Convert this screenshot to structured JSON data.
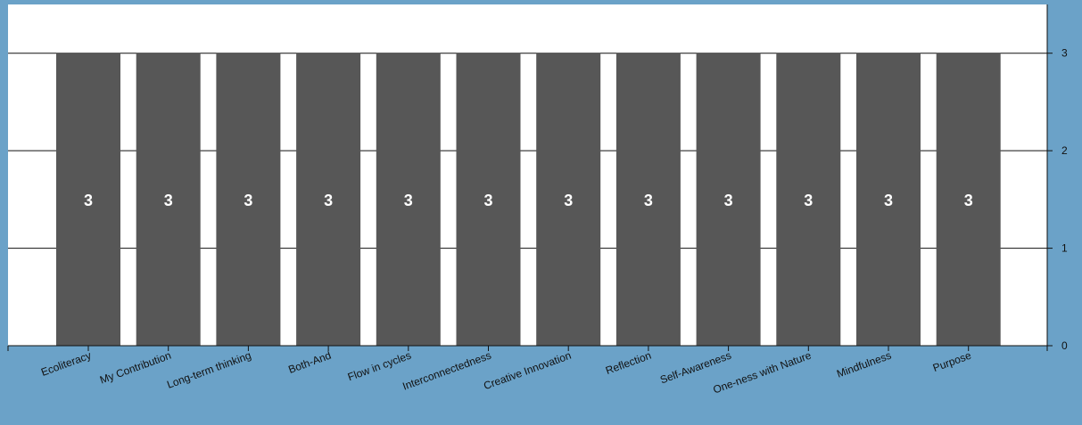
{
  "colors": {
    "background": "#6ba2c8",
    "plot_background": "#ffffff",
    "bar": "#575757",
    "bar_label": "#ffffff",
    "axis": "#111111"
  },
  "chart_data": {
    "type": "bar",
    "categories": [
      "Ecoliteracy",
      "My Contribution",
      "Long-term thinking",
      "Both-And",
      "Flow in cycles",
      "Interconnectedness",
      "Creative Innovation",
      "Reflection",
      "Self-Awareness",
      "One-ness with Nature",
      "Mindfulness",
      "Purpose"
    ],
    "values": [
      3,
      3,
      3,
      3,
      3,
      3,
      3,
      3,
      3,
      3,
      3,
      3
    ],
    "data_labels": [
      "3",
      "3",
      "3",
      "3",
      "3",
      "3",
      "3",
      "3",
      "3",
      "3",
      "3",
      "3"
    ],
    "title": "",
    "xlabel": "",
    "ylabel": "",
    "ylim": [
      0,
      3.5
    ],
    "yticks": [
      0,
      1,
      2,
      3
    ],
    "ytick_labels": [
      "0",
      "1",
      "2",
      "3"
    ],
    "y_axis_side": "right",
    "grid": true,
    "legend": "none"
  }
}
